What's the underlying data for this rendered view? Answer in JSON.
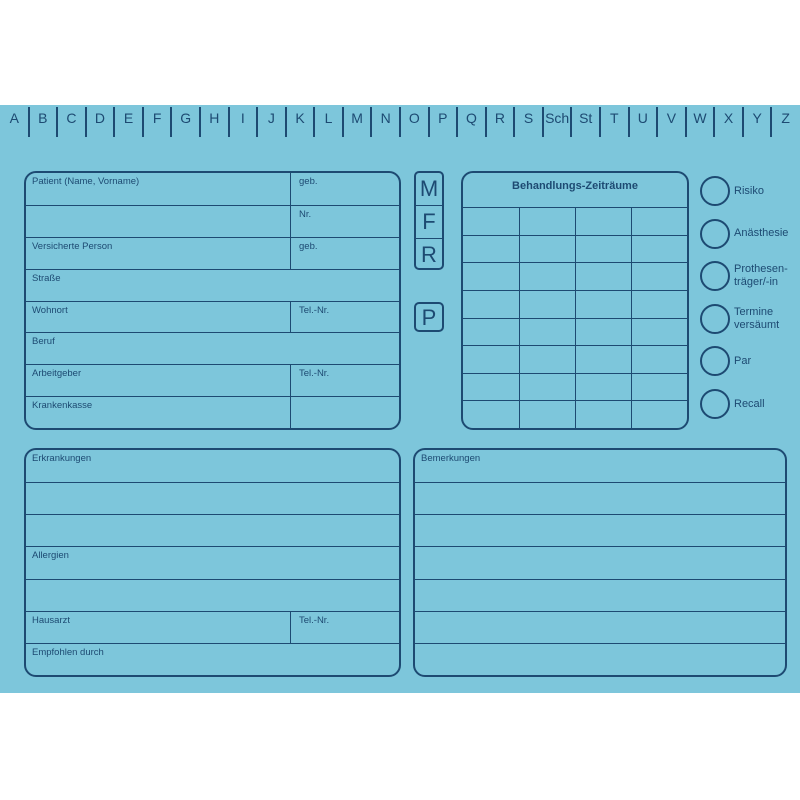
{
  "colors": {
    "card": "#7dc6db",
    "ink": "#1d4a72"
  },
  "tabs": [
    "A",
    "B",
    "C",
    "D",
    "E",
    "F",
    "G",
    "H",
    "I",
    "J",
    "K",
    "L",
    "M",
    "N",
    "O",
    "P",
    "Q",
    "R",
    "S",
    "Sch",
    "St",
    "T",
    "U",
    "V",
    "W",
    "X",
    "Y",
    "Z"
  ],
  "patient_box": {
    "rows": [
      {
        "label": "Patient (Name, Vorname)",
        "right": "geb.",
        "split": true
      },
      {
        "label": "",
        "right": "Nr.",
        "split": true
      },
      {
        "label": "Versicherte Person",
        "right": "geb.",
        "split": true
      },
      {
        "label": "Straße",
        "right": "",
        "split": false
      },
      {
        "label": "Wohnort",
        "right": "Tel.-Nr.",
        "split": true
      },
      {
        "label": "Beruf",
        "right": "",
        "split": false
      },
      {
        "label": "Arbeitgeber",
        "right": "Tel.-Nr.",
        "split": true
      },
      {
        "label": "Krankenkasse",
        "right": "",
        "split": true
      }
    ]
  },
  "status_letters": {
    "group": [
      "M",
      "F",
      "R"
    ],
    "single": "P"
  },
  "treatment_periods": {
    "title": "Behandlungs-Zeiträume",
    "rows": 8,
    "columns": 4
  },
  "flags": [
    {
      "label": "Risiko"
    },
    {
      "label": "Anästhesie"
    },
    {
      "label": "Prothesen-\nträger/-in"
    },
    {
      "label": "Termine\nversäumt"
    },
    {
      "label": "Par"
    },
    {
      "label": "Recall"
    }
  ],
  "medical_box": {
    "rows": [
      {
        "label": "Erkrankungen",
        "right": "",
        "split": false
      },
      {
        "label": "",
        "right": "",
        "split": false
      },
      {
        "label": "",
        "right": "",
        "split": false
      },
      {
        "label": "Allergien",
        "right": "",
        "split": false
      },
      {
        "label": "",
        "right": "",
        "split": false
      },
      {
        "label": "Hausarzt",
        "right": "Tel.-Nr.",
        "split": true
      },
      {
        "label": "Empfohlen durch",
        "right": "",
        "split": false
      }
    ]
  },
  "remarks_box": {
    "rows": [
      {
        "label": "Bemerkungen"
      },
      {
        "label": ""
      },
      {
        "label": ""
      },
      {
        "label": ""
      },
      {
        "label": ""
      },
      {
        "label": ""
      },
      {
        "label": ""
      }
    ]
  }
}
